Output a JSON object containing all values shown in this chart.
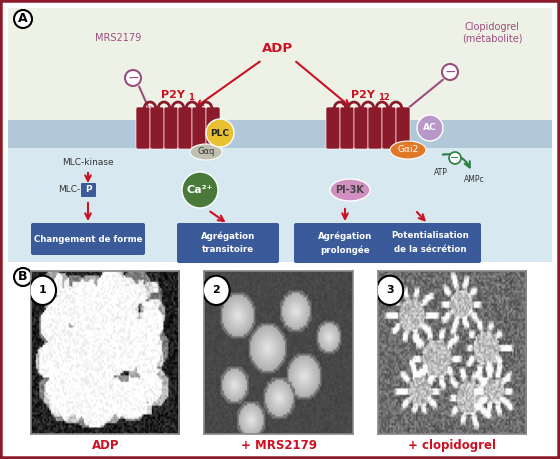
{
  "bg_outer": "#ffffff",
  "bg_top": "#eef2e6",
  "bg_bottom": "#d8e8f0",
  "membrane_color": "#b0c8d8",
  "border_color": "#8b1a2a",
  "red_arrow": "#cc1122",
  "purple_arrow": "#9b4e7e",
  "receptor_color": "#8b1a2a",
  "plc_color": "#e8c030",
  "gaq_color": "#c0c0b0",
  "ca_color": "#4a7a3a",
  "pi3k_color": "#d090c0",
  "gai2_color": "#e07828",
  "ac_color": "#b898c8",
  "green_arrow_color": "#2a8040",
  "blue_box_color": "#3a5a9a",
  "blue_box_text": "#ffffff",
  "label_A": "A",
  "label_B": "B",
  "adp_label": "ADP",
  "mrs_label": "MRS2179",
  "clopi_label1": "Clopidogrel",
  "clopi_label2": "(métabolite)",
  "p2y1_label": "P2Y",
  "p2y1_sub": "1",
  "p2y12_label": "P2Y",
  "p2y12_sub": "12",
  "mlck_label": "MLC-kinase",
  "mlcp_label": "MLC-",
  "mlcp_p": "P",
  "plc_label": "PLC",
  "gaq_label": "Gαq",
  "ca_label": "Ca²⁺",
  "pi3k_label": "PI-3K",
  "gai2_label": "Gαi2",
  "ac_label": "AC",
  "atp_label": "ATP",
  "ampc_label": "AMPc",
  "box1_line1": "Changement de forme",
  "box2_line1": "Agrégation",
  "box2_line2": "transitoire",
  "box3_line1": "Agrégation",
  "box3_line2": "prolongée",
  "box4_line1": "Potentialisation",
  "box4_line2": "de la sécrétion",
  "img1_label": "ADP",
  "img2_label": "+ MRS2179",
  "img3_label": "+ clopidogrel",
  "minus_sign": "−"
}
